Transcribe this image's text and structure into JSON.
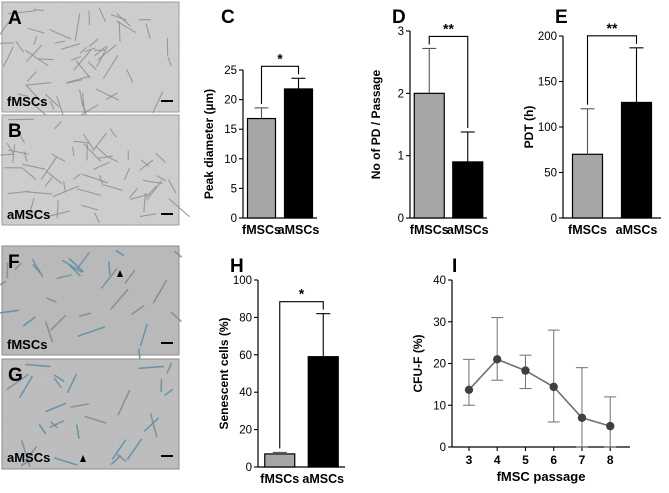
{
  "micrographs": [
    {
      "letter": "A",
      "label": "fMSCs",
      "style": "phase"
    },
    {
      "letter": "B",
      "label": "aMSCs",
      "style": "phase"
    },
    {
      "letter": "F",
      "label": "fMSCs",
      "style": "stain"
    },
    {
      "letter": "G",
      "label": "aMSCs",
      "style": "stain"
    }
  ],
  "colors": {
    "fMSCs": "#a6a6a6",
    "aMSCs": "#000000",
    "line": "#707070",
    "point": "#404040"
  },
  "chart_data": [
    {
      "panel": "C",
      "type": "bar",
      "categories": [
        "fMSCs",
        "aMSCs"
      ],
      "values": [
        16.8,
        21.8
      ],
      "errors": [
        1.8,
        1.8
      ],
      "ylabel": "Peak diameter (µm)",
      "ylim": [
        0,
        25
      ],
      "yticks": [
        0,
        5,
        10,
        15,
        20,
        25
      ],
      "significance": "*"
    },
    {
      "panel": "D",
      "type": "bar",
      "categories": [
        "fMSCs",
        "aMSCs"
      ],
      "values": [
        2.0,
        0.9
      ],
      "errors": [
        0.72,
        0.48
      ],
      "ylabel": "No of PD / Passage",
      "ylim": [
        0,
        3
      ],
      "yticks": [
        0,
        1,
        2,
        3
      ],
      "significance": "**"
    },
    {
      "panel": "E",
      "type": "bar",
      "categories": [
        "fMSCs",
        "aMSCs"
      ],
      "values": [
        70,
        127
      ],
      "errors": [
        50,
        60
      ],
      "ylabel": "PDT (h)",
      "ylim": [
        0,
        200
      ],
      "yticks": [
        0,
        50,
        100,
        150,
        200
      ],
      "significance": "**"
    },
    {
      "panel": "H",
      "type": "bar",
      "categories": [
        "fMSCs",
        "aMSCs"
      ],
      "values": [
        7,
        59
      ],
      "errors": [
        0.8,
        23
      ],
      "ylabel": "Senescent cells (%)",
      "ylim": [
        0,
        100
      ],
      "yticks": [
        0,
        20,
        40,
        60,
        80,
        100
      ],
      "significance": "*"
    },
    {
      "panel": "I",
      "type": "line",
      "x": [
        3,
        4,
        5,
        6,
        7,
        8
      ],
      "values": [
        13.7,
        21,
        18.3,
        14.4,
        7,
        5
      ],
      "err_up": [
        7.3,
        10,
        3.7,
        13.6,
        12,
        7
      ],
      "err_down": [
        3.7,
        5,
        4.3,
        8.4,
        7,
        5
      ],
      "ylabel": "CFU-F (%)",
      "xlabel": "fMSC passage",
      "ylim": [
        0,
        40
      ],
      "yticks": [
        0,
        10,
        20,
        30,
        40
      ],
      "xticks": [
        3,
        4,
        5,
        6,
        7,
        8
      ]
    }
  ]
}
